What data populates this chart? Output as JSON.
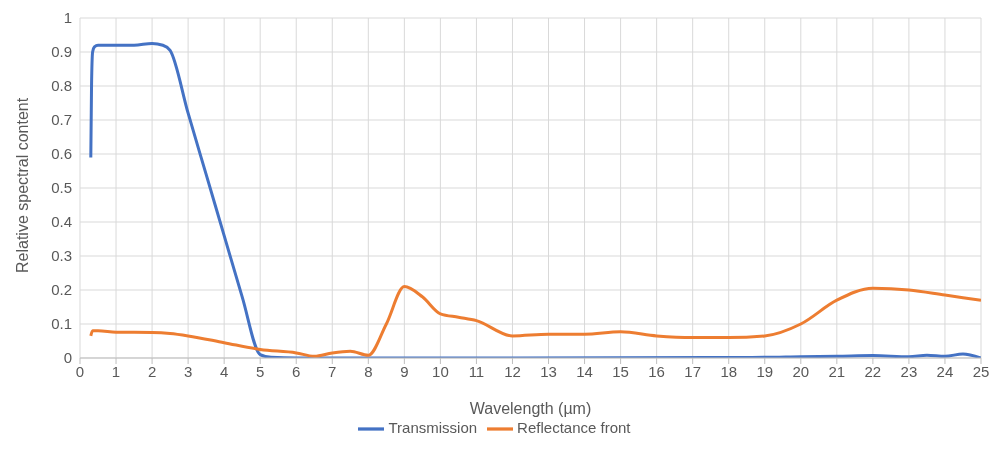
{
  "chart_data": {
    "type": "line",
    "xlabel": "Wavelength (µm)",
    "ylabel": "Relative spectral content",
    "xlim": [
      0,
      25
    ],
    "xticks": [
      0,
      1,
      2,
      3,
      4,
      5,
      6,
      7,
      8,
      9,
      10,
      11,
      12,
      13,
      14,
      15,
      16,
      17,
      18,
      19,
      20,
      21,
      22,
      23,
      24,
      25
    ],
    "ylim": [
      0,
      1
    ],
    "yticks": [
      0,
      0.1,
      0.2,
      0.3,
      0.4,
      0.5,
      0.6,
      0.7,
      0.8,
      0.9,
      1
    ],
    "grid": true,
    "legend": "bottom",
    "marker": "none",
    "line_style": "solid",
    "series": [
      {
        "name": "Transmission",
        "color": "#4472c4",
        "x": [
          0.3,
          0.32,
          0.35,
          0.4,
          0.5,
          1,
          1.5,
          2,
          2.3,
          2.5,
          3,
          3.5,
          4,
          4.5,
          5,
          5.3,
          6,
          10,
          15,
          19,
          20,
          21,
          22,
          23,
          23.5,
          24,
          24.5,
          25
        ],
        "values": [
          0.59,
          0.8,
          0.9,
          0.915,
          0.92,
          0.92,
          0.92,
          0.925,
          0.92,
          0.905,
          0.72,
          0.54,
          0.36,
          0.18,
          0.01,
          0.002,
          0,
          0,
          0.001,
          0.002,
          0.004,
          0.005,
          0.007,
          0.004,
          0.008,
          0.005,
          0.012,
          0
        ]
      },
      {
        "name": "Reflectance front",
        "color": "#ed7d31",
        "x": [
          0.3,
          0.35,
          0.5,
          1,
          2,
          2.5,
          3,
          4,
          5,
          6,
          6.5,
          7,
          7.5,
          8,
          8.5,
          9,
          9.5,
          10,
          10.5,
          11,
          12,
          13,
          14,
          15,
          16,
          17,
          18,
          19,
          20,
          21,
          22,
          23,
          24,
          25
        ],
        "values": [
          0.065,
          0.08,
          0.08,
          0.076,
          0.075,
          0.072,
          0.065,
          0.045,
          0.025,
          0.015,
          0.005,
          0.015,
          0.02,
          0.008,
          0.1,
          0.21,
          0.18,
          0.13,
          0.12,
          0.11,
          0.065,
          0.07,
          0.07,
          0.077,
          0.065,
          0.06,
          0.06,
          0.065,
          0.1,
          0.17,
          0.205,
          0.2,
          0.185,
          0.17
        ]
      }
    ]
  }
}
